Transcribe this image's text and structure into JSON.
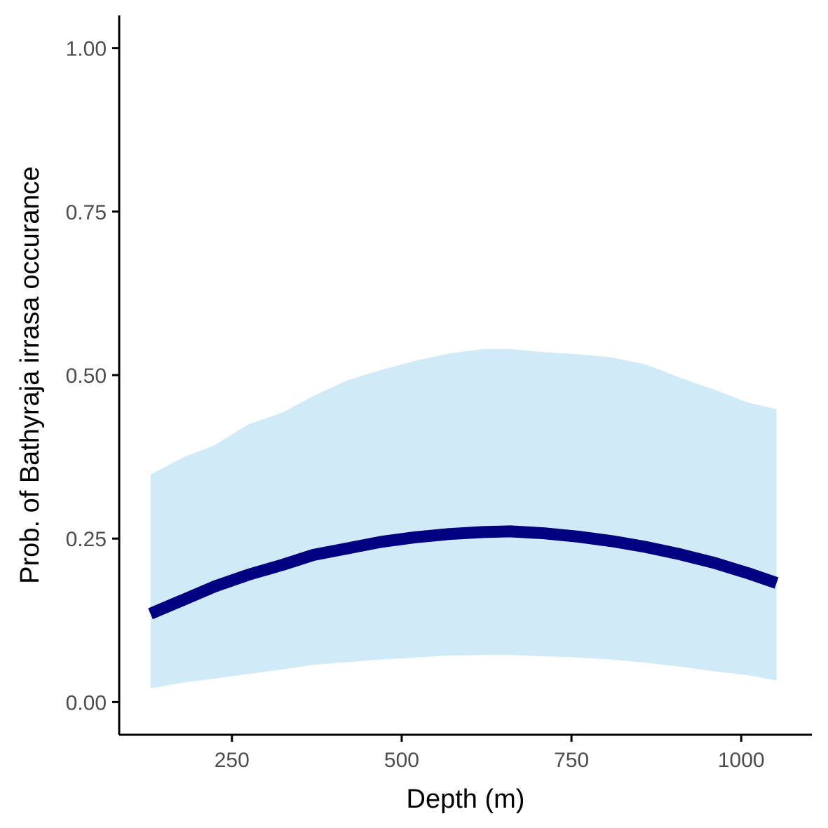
{
  "chart_data": {
    "type": "line",
    "title": "",
    "xlabel": "Depth (m)",
    "ylabel": "Prob. of  Bathyraja irrasa  occurance",
    "xlim": [
      84,
      1104
    ],
    "ylim": [
      -0.05,
      1.05
    ],
    "xticks": [
      250,
      500,
      750,
      1000
    ],
    "xtick_labels": [
      "250",
      "500",
      "750",
      "1000"
    ],
    "yticks": [
      0,
      0.25,
      0.5,
      0.75,
      1.0
    ],
    "ytick_labels": [
      "0.00",
      "0.25",
      "0.50",
      "0.75",
      "1.00"
    ],
    "grid": false,
    "legend": "none",
    "series": [
      {
        "x": [
          130,
          180,
          225,
          275,
          325,
          370,
          420,
          470,
          520,
          570,
          620,
          660,
          710,
          760,
          810,
          860,
          910,
          960,
          1010,
          1052
        ],
        "y": [
          0.135,
          0.157,
          0.177,
          0.195,
          0.21,
          0.225,
          0.235,
          0.245,
          0.252,
          0.257,
          0.26,
          0.261,
          0.258,
          0.253,
          0.246,
          0.237,
          0.226,
          0.213,
          0.197,
          0.182
        ],
        "lower": [
          0.021,
          0.03,
          0.036,
          0.043,
          0.05,
          0.057,
          0.061,
          0.065,
          0.068,
          0.071,
          0.072,
          0.072,
          0.07,
          0.068,
          0.065,
          0.06,
          0.054,
          0.047,
          0.041,
          0.033
        ],
        "upper": [
          0.348,
          0.375,
          0.393,
          0.425,
          0.443,
          0.468,
          0.492,
          0.508,
          0.522,
          0.533,
          0.54,
          0.54,
          0.535,
          0.532,
          0.527,
          0.516,
          0.496,
          0.478,
          0.458,
          0.448
        ]
      }
    ],
    "colors": {
      "line": "#000080",
      "ribbon": "#d1eaf7",
      "axis": "#000000",
      "tick_text": "#4d4d4d"
    }
  }
}
